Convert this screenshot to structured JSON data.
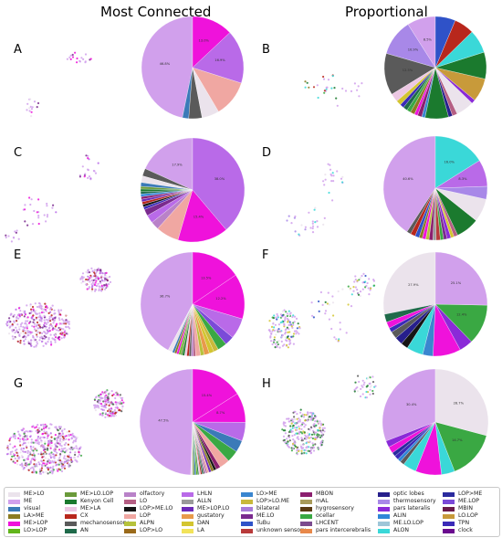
{
  "column_titles": [
    "Most Connected",
    "Proportional"
  ],
  "palette": {
    "ME>LO": "#ebe3ec",
    "ME": "#d1a0ec",
    "visual": "#3b7ab8",
    "LA>ME": "#8b7b22",
    "ME>LOP": "#ef12db",
    "LO>LOP": "#61b51a",
    "ME>LO.LOP": "#6a9a3a",
    "Kenyon Cell": "#1b7a2e",
    "ME>LA": "#ecc7e3",
    "CX": "#b8271c",
    "mechanosensory": "#5a5a5a",
    "AN": "#1f6a4a",
    "olfactory": "#b982c8",
    "LO": "#b55f84",
    "LOP>ME.LO": "#151515",
    "LOP": "#f0a7a2",
    "ALPN": "#b6c23b",
    "LOP>LO": "#9a6a1a",
    "LHLN": "#b96ae8",
    "ALLN": "#9a9a9a",
    "ME>LOP.LO": "#6d2ab8",
    "gustatory": "#e89a4a",
    "DAN": "#d3c530",
    "LA": "#f2e35a",
    "LO>ME": "#3a86cf",
    "LOP>LO.ME": "#c9b93a",
    "bilateral": "#a87bd8",
    "ME.LO": "#7a2a8e",
    "TuBu": "#2f52c8",
    "unknown sensory": "#b83a3a",
    "MBON": "#8b1f6e",
    "mAL": "#a89a5a",
    "hygrosensory": "#5a3a12",
    "ocellar": "#3aa843",
    "LHCENT": "#7b4a8e",
    "pars intercerebralis": "#e8884a",
    "optic lobes": "#271f8c",
    "thermosensory": "#a888e8",
    "pars lateralis": "#8a2ad8",
    "ALIN": "#2f86d8",
    "ME.LO.LOP": "#9ec6d8",
    "ALON": "#3ad8d8",
    "LOP>ME": "#2a2a9e",
    "ME.LOP": "#7b4ad8",
    "MBIN": "#6a1a4a",
    "LO.LOP": "#c89a3a",
    "TPN": "#3a2ab8",
    "clock": "#6a0a8e"
  },
  "chart_data": [
    {
      "panel": "A",
      "type": "pie",
      "column": "Most Connected",
      "labels_shown": [
        "46.8%",
        "13.0%",
        "16.9%"
      ],
      "slices": [
        {
          "category": "ME",
          "value": 46.8
        },
        {
          "category": "visual",
          "value": 2.0
        },
        {
          "category": "mechanosensory",
          "value": 4.2
        },
        {
          "category": "ME>LO",
          "value": 5.5
        },
        {
          "category": "LOP",
          "value": 11.6
        },
        {
          "category": "LHLN",
          "value": 16.9
        },
        {
          "category": "ME>LOP",
          "value": 13.0
        }
      ]
    },
    {
      "panel": "B",
      "type": "pie",
      "column": "Proportional",
      "labels_shown": [
        "8.5%",
        "10.9%",
        "12.5%"
      ],
      "slices": [
        {
          "category": "ME",
          "value": 8.5
        },
        {
          "category": "thermosensory",
          "value": 10.9
        },
        {
          "category": "mechanosensory",
          "value": 12.5
        },
        {
          "category": "ME>LA",
          "value": 2.5
        },
        {
          "category": "DAN",
          "value": 1.5
        },
        {
          "category": "TPN",
          "value": 1.2
        },
        {
          "category": "AN",
          "value": 1.3
        },
        {
          "category": "ocellar",
          "value": 1.2
        },
        {
          "category": "LA>ME",
          "value": 1.3
        },
        {
          "category": "ME>LOP",
          "value": 1.0
        },
        {
          "category": "MBON",
          "value": 1.3
        },
        {
          "category": "LO>ME",
          "value": 1.0
        },
        {
          "category": "Kenyon Cell",
          "value": 7.0
        },
        {
          "category": "optic lobes",
          "value": 1.2
        },
        {
          "category": "LO",
          "value": 1.5
        },
        {
          "category": "ME>LO",
          "value": 5.4
        },
        {
          "category": "pars lateralis",
          "value": 1.2
        },
        {
          "category": "LO.LOP",
          "value": 7.0
        },
        {
          "category": "Kenyon Cell",
          "value": 8.0
        },
        {
          "category": "ALON",
          "value": 7.0
        },
        {
          "category": "CX",
          "value": 6.0
        },
        {
          "category": "TuBu",
          "value": 6.0
        }
      ]
    },
    {
      "panel": "C",
      "type": "pie",
      "column": "Most Connected",
      "labels_shown": [
        "17.9%",
        "38.0%",
        "15.4%"
      ],
      "slices": [
        {
          "category": "ME",
          "value": 17.9
        },
        {
          "category": "mechanosensory",
          "value": 2.3
        },
        {
          "category": "ME>LO",
          "value": 2.0
        },
        {
          "category": "visual",
          "value": 1.2
        },
        {
          "category": "ME>LO.LOP",
          "value": 0.8
        },
        {
          "category": "Kenyon Cell",
          "value": 0.8
        },
        {
          "category": "AN",
          "value": 0.7
        },
        {
          "category": "ALIN",
          "value": 0.8
        },
        {
          "category": "MBON",
          "value": 0.8
        },
        {
          "category": "ME>LOP.LO",
          "value": 0.8
        },
        {
          "category": "CX",
          "value": 0.8
        },
        {
          "category": "LOP>ME.LO",
          "value": 0.8
        },
        {
          "category": "TPN",
          "value": 0.8
        },
        {
          "category": "ME.LO",
          "value": 2.0
        },
        {
          "category": "LHLN",
          "value": 2.5
        },
        {
          "category": "olfactory",
          "value": 2.5
        },
        {
          "category": "LOP",
          "value": 7.0
        },
        {
          "category": "ME>LOP",
          "value": 15.4
        },
        {
          "category": "LHLN",
          "value": 38.0
        }
      ]
    },
    {
      "panel": "D",
      "type": "pie",
      "column": "Proportional",
      "labels_shown": [
        "40.6%",
        "16.0%",
        "8.3%"
      ],
      "slices": [
        {
          "category": "ME",
          "value": 40.6
        },
        {
          "category": "mechanosensory",
          "value": 1.3
        },
        {
          "category": "CX",
          "value": 1.5
        },
        {
          "category": "TuBu",
          "value": 1.3
        },
        {
          "category": "LA>ME",
          "value": 1.0
        },
        {
          "category": "ME>LOP",
          "value": 1.1
        },
        {
          "category": "ALPN",
          "value": 1.0
        },
        {
          "category": "MBON",
          "value": 1.2
        },
        {
          "category": "ALLN",
          "value": 1.0
        },
        {
          "category": "unknown sensory",
          "value": 1.3
        },
        {
          "category": "ocellar",
          "value": 1.0
        },
        {
          "category": "ME.LO",
          "value": 1.1
        },
        {
          "category": "pars lateralis",
          "value": 1.2
        },
        {
          "category": "DAN",
          "value": 1.0
        },
        {
          "category": "LO",
          "value": 1.2
        },
        {
          "category": "Kenyon Cell",
          "value": 7.2
        },
        {
          "category": "ME>LO",
          "value": 7.2
        },
        {
          "category": "thermosensory",
          "value": 4.0
        },
        {
          "category": "LHLN",
          "value": 8.3
        },
        {
          "category": "ALON",
          "value": 16.0
        }
      ]
    },
    {
      "panel": "E",
      "type": "pie",
      "column": "Most Connected",
      "labels_shown": [
        "36.7%",
        "13.5%",
        "12.2%"
      ],
      "slices": [
        {
          "category": "ME",
          "value": 36.7
        },
        {
          "category": "ME>LO",
          "value": 1.2
        },
        {
          "category": "visual",
          "value": 0.6
        },
        {
          "category": "LA>ME",
          "value": 0.6
        },
        {
          "category": "ME>LOP",
          "value": 0.6
        },
        {
          "category": "LO>LOP",
          "value": 0.5
        },
        {
          "category": "ME>LO.LOP",
          "value": 0.5
        },
        {
          "category": "Kenyon Cell",
          "value": 0.6
        },
        {
          "category": "ME>LA",
          "value": 0.6
        },
        {
          "category": "CX",
          "value": 0.6
        },
        {
          "category": "mechanosensory",
          "value": 0.6
        },
        {
          "category": "olfactory",
          "value": 0.6
        },
        {
          "category": "LO",
          "value": 0.6
        },
        {
          "category": "LOP",
          "value": 1.3
        },
        {
          "category": "ALPN",
          "value": 1.0
        },
        {
          "category": "gustatory",
          "value": 1.4
        },
        {
          "category": "DAN",
          "value": 1.3
        },
        {
          "category": "LOP>LO.ME",
          "value": 1.3
        },
        {
          "category": "ocellar",
          "value": 2.5
        },
        {
          "category": "ME.LOP",
          "value": 2.5
        },
        {
          "category": "LHLN",
          "value": 5.6
        },
        {
          "category": "ME>LOP",
          "value": 12.2
        },
        {
          "category": "ME>LOP",
          "value": 13.5
        }
      ]
    },
    {
      "panel": "F",
      "type": "pie",
      "column": "Proportional",
      "labels_shown": [
        "27.9%",
        "25.1%",
        "12.4%"
      ],
      "slices": [
        {
          "category": "ME>LO",
          "value": 27.9
        },
        {
          "category": "AN",
          "value": 2.5
        },
        {
          "category": "ME>LOP",
          "value": 2.0
        },
        {
          "category": "TPN",
          "value": 1.4
        },
        {
          "category": "mechanosensory",
          "value": 2.2
        },
        {
          "category": "optic lobes",
          "value": 2.4
        },
        {
          "category": "LOP>ME.LO",
          "value": 2.2
        },
        {
          "category": "ALON",
          "value": 5.1
        },
        {
          "category": "LO>ME",
          "value": 3.2
        },
        {
          "category": "ME>LOP",
          "value": 8.6
        },
        {
          "category": "pars lateralis",
          "value": 4.2
        },
        {
          "category": "ocellar",
          "value": 12.4
        },
        {
          "category": "ME",
          "value": 25.1
        }
      ]
    },
    {
      "panel": "G",
      "type": "pie",
      "column": "Most Connected",
      "labels_shown": [
        "47.5%",
        "15.4%",
        "8.7%"
      ],
      "slices": [
        {
          "category": "ME",
          "value": 47.5
        },
        {
          "category": "ME>LO",
          "value": 0.6
        },
        {
          "category": "ME>LO.LOP",
          "value": 0.5
        },
        {
          "category": "visual",
          "value": 0.5
        },
        {
          "category": "LO>LOP",
          "value": 0.4
        },
        {
          "category": "Kenyon Cell",
          "value": 0.4
        },
        {
          "category": "ME>LA",
          "value": 0.5
        },
        {
          "category": "CX",
          "value": 0.4
        },
        {
          "category": "AN",
          "value": 0.4
        },
        {
          "category": "mechanosensory",
          "value": 0.4
        },
        {
          "category": "olfactory",
          "value": 0.4
        },
        {
          "category": "LO",
          "value": 0.4
        },
        {
          "category": "LOP",
          "value": 0.5
        },
        {
          "category": "ME>LOP.LO",
          "value": 0.7
        },
        {
          "category": "LA>ME",
          "value": 0.8
        },
        {
          "category": "LOP>ME.LO",
          "value": 0.8
        },
        {
          "category": "MBON",
          "value": 1.3
        },
        {
          "category": "LOP",
          "value": 3.0
        },
        {
          "category": "ocellar",
          "value": 3.5
        },
        {
          "category": "visual",
          "value": 3.5
        },
        {
          "category": "LHLN",
          "value": 5.5
        },
        {
          "category": "ME>LOP",
          "value": 8.7
        },
        {
          "category": "ME>LOP",
          "value": 15.4
        }
      ]
    },
    {
      "panel": "H",
      "type": "pie",
      "column": "Proportional",
      "labels_shown": [
        "30.4%",
        "28.7%",
        "14.7%"
      ],
      "slices": [
        {
          "category": "ME",
          "value": 30.4
        },
        {
          "category": "pars lateralis",
          "value": 2.0
        },
        {
          "category": "ME>LOP",
          "value": 2.0
        },
        {
          "category": "LOP>ME",
          "value": 1.2
        },
        {
          "category": "TPN",
          "value": 1.3
        },
        {
          "category": "ALIN",
          "value": 1.0
        },
        {
          "category": "mechanosensory",
          "value": 1.3
        },
        {
          "category": "ALON",
          "value": 4.1
        },
        {
          "category": "ME>LOP",
          "value": 7.8
        },
        {
          "category": "ALON",
          "value": 4.0
        },
        {
          "category": "ocellar",
          "value": 14.7
        },
        {
          "category": "ME>LO",
          "value": 28.7
        }
      ]
    }
  ],
  "scatter_panels": [
    {
      "panel": "A",
      "categories": [
        "ME",
        "ME>LOP",
        "ME.LO",
        "ME>LO"
      ]
    },
    {
      "panel": "B",
      "categories": [
        "ME",
        "Kenyon Cell",
        "ocellar",
        "ALON",
        "CX",
        "LA>ME"
      ]
    },
    {
      "panel": "C",
      "categories": [
        "ME",
        "ME>LOP",
        "ME.LO",
        "LHLN"
      ]
    },
    {
      "panel": "D",
      "categories": [
        "ME",
        "ME>LO",
        "Kenyon Cell",
        "ALON",
        "thermosensory"
      ]
    },
    {
      "panel": "E",
      "categories": [
        "ME",
        "ME>LO",
        "ME>LOP",
        "LHLN",
        "CX",
        "ME.LO"
      ]
    },
    {
      "panel": "F",
      "categories": [
        "ME",
        "ME>LO",
        "ocellar",
        "ALON",
        "TuBu",
        "DAN",
        "Kenyon Cell"
      ]
    },
    {
      "panel": "G",
      "categories": [
        "ME",
        "ME>LO",
        "ME>LOP",
        "LHLN",
        "CX",
        "ocellar",
        "mechanosensory"
      ]
    },
    {
      "panel": "H",
      "categories": [
        "ME",
        "ME>LO",
        "ocellar",
        "ALON",
        "DAN",
        "mechanosensory",
        "Kenyon Cell"
      ]
    }
  ],
  "legend": {
    "columns": [
      [
        "ME>LO",
        "ME",
        "visual",
        "LA>ME",
        "ME>LOP",
        "LO>LOP"
      ],
      [
        "ME>LO.LOP",
        "Kenyon Cell",
        "ME>LA",
        "CX",
        "mechanosensory",
        "AN"
      ],
      [
        "olfactory",
        "LO",
        "LOP>ME.LO",
        "LOP",
        "ALPN",
        "LOP>LO"
      ],
      [
        "LHLN",
        "ALLN",
        "ME>LOP.LO",
        "gustatory",
        "DAN",
        "LA"
      ],
      [
        "LO>ME",
        "LOP>LO.ME",
        "bilateral",
        "ME.LO",
        "TuBu",
        "unknown sensory"
      ],
      [
        "MBON",
        "mAL",
        "hygrosensory",
        "ocellar",
        "LHCENT",
        "pars intercerebralis"
      ],
      [
        "optic lobes",
        "thermosensory",
        "pars lateralis",
        "ALIN",
        "ME.LO.LOP",
        "ALON"
      ],
      [
        "LOP>ME",
        "ME.LOP",
        "MBIN",
        "LO.LOP",
        "TPN",
        "clock"
      ]
    ]
  }
}
